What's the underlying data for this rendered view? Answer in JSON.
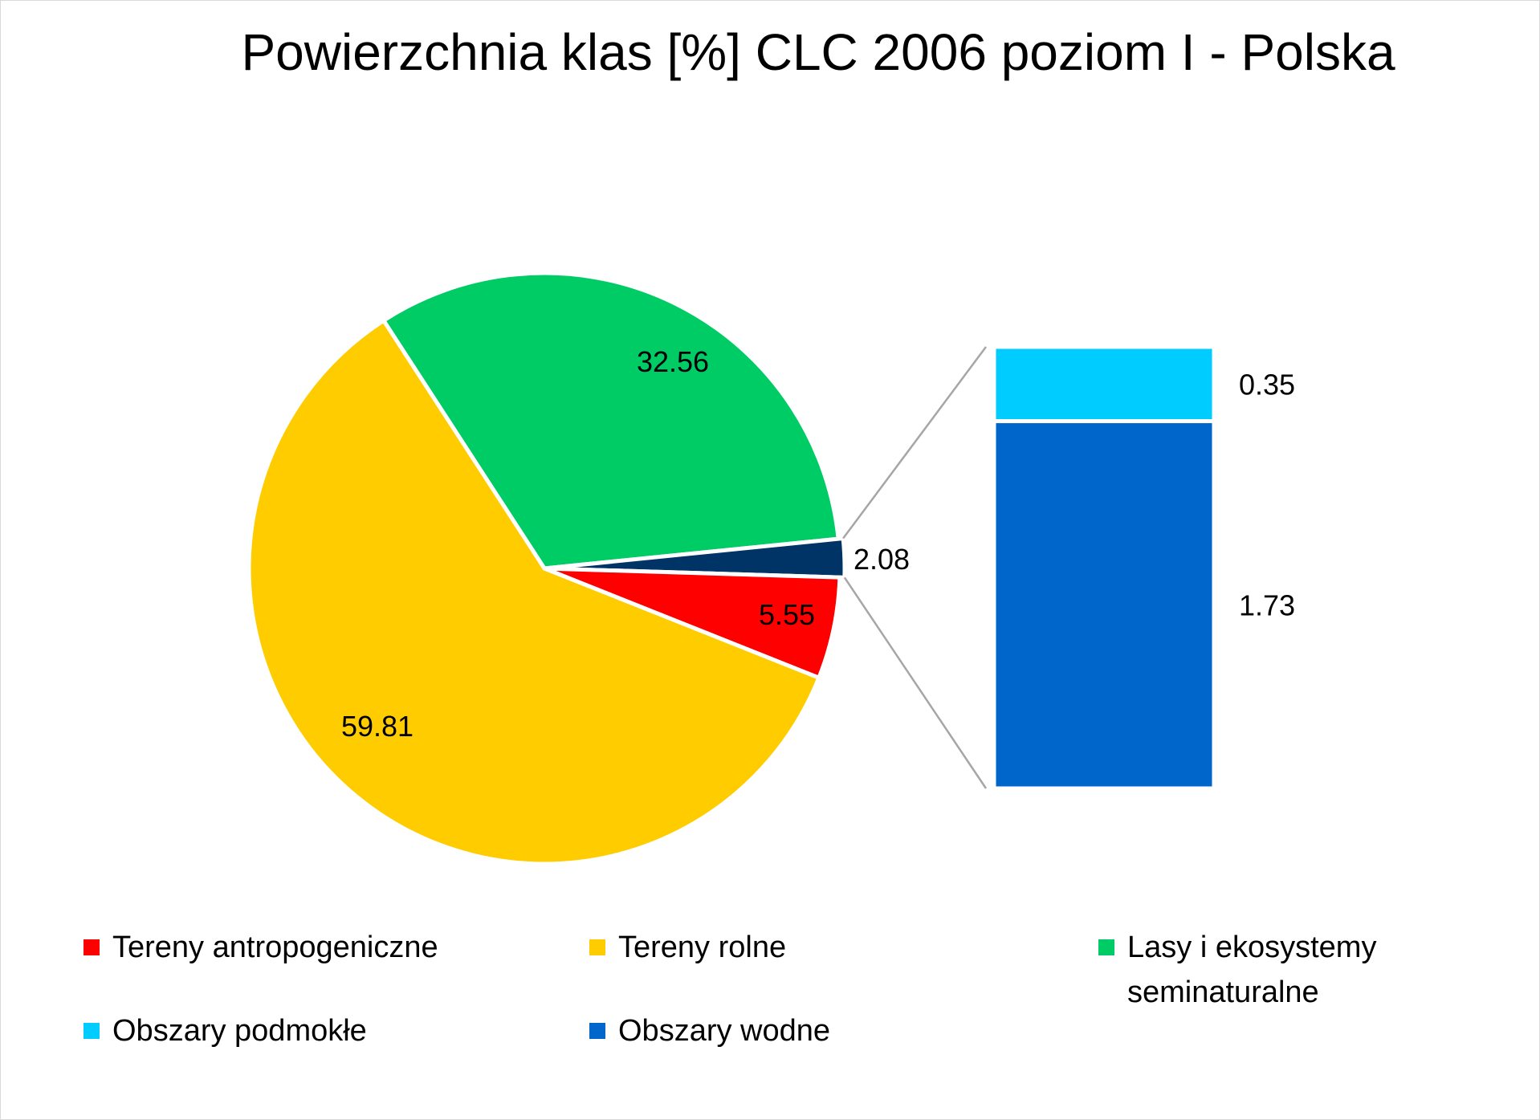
{
  "chart_data": {
    "type": "pie",
    "subtype": "bar-of-pie",
    "title": "Powierzchnia klas [%] CLC 2006 poziom I - Polska",
    "slices": [
      {
        "name": "Lasy i ekosystemy seminaturalne",
        "value": 32.56,
        "label": "32.56",
        "color": "#00cc66"
      },
      {
        "name": "Obszary podmokłe + Obszary wodne",
        "value": 2.08,
        "label": "2.08",
        "color": "#003366"
      },
      {
        "name": "Tereny antropogeniczne",
        "value": 5.55,
        "label": "5.55",
        "color": "#ff0000"
      },
      {
        "name": "Tereny rolne",
        "value": 59.81,
        "label": "59.81",
        "color": "#ffcc00"
      }
    ],
    "secondary_bar": [
      {
        "name": "Obszary podmokłe",
        "value": 0.35,
        "label": "0.35",
        "color": "#00ccff"
      },
      {
        "name": "Obszary wodne",
        "value": 1.73,
        "label": "1.73",
        "color": "#0066cc"
      }
    ],
    "legend": {
      "placement": "bottom",
      "items": [
        {
          "label": "Tereny antropogeniczne",
          "color": "#ff0000"
        },
        {
          "label": "Tereny rolne",
          "color": "#ffcc00"
        },
        {
          "label": "Lasy i ekosystemy seminaturalne",
          "color": "#00cc66"
        },
        {
          "label": "Obszary podmokłe",
          "color": "#00ccff"
        },
        {
          "label": "Obszary wodne",
          "color": "#0066cc"
        }
      ]
    }
  }
}
